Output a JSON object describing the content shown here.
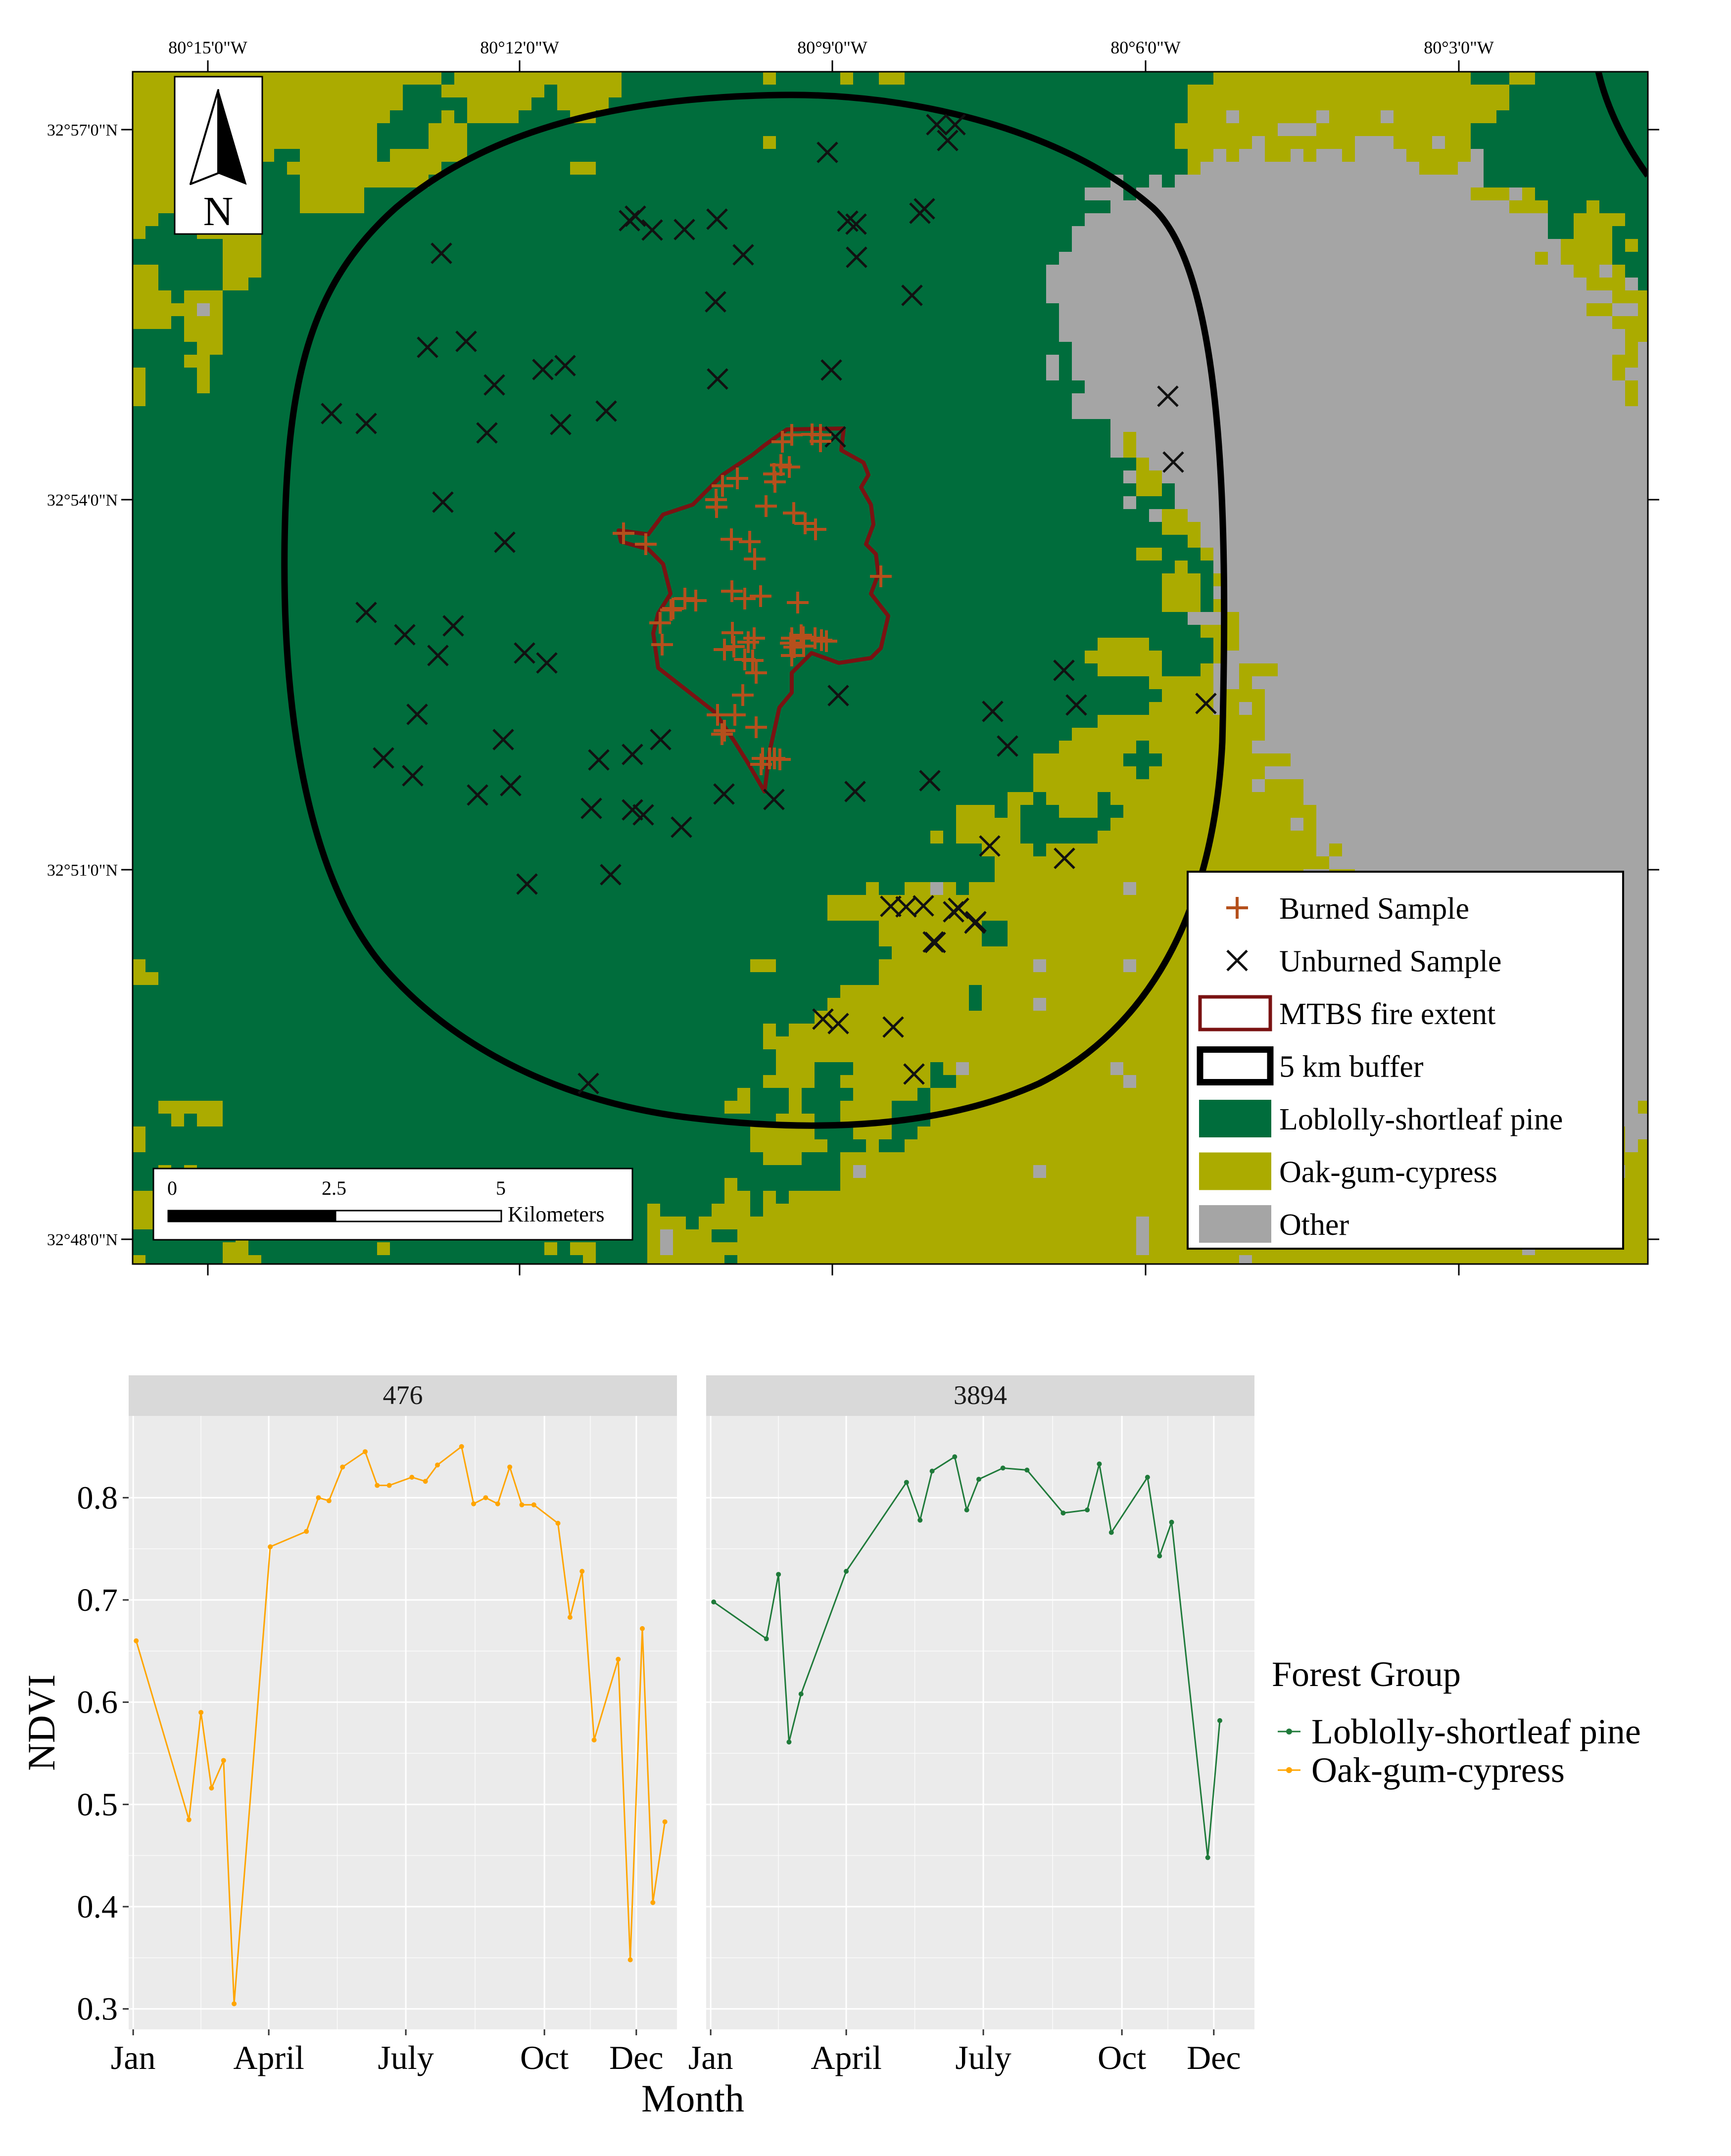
{
  "map": {
    "lon_labels": [
      "80°15'0\"W",
      "80°12'0\"W",
      "80°9'0\"W",
      "80°6'0\"W",
      "80°3'0\"W"
    ],
    "lat_labels": [
      "32°57'0\"N",
      "32°54'0\"N",
      "32°51'0\"N",
      "32°48'0\"N"
    ],
    "north_arrow": {
      "icon": "north-arrow-icon",
      "label": "N"
    },
    "scale_bar": {
      "ticks": [
        "0",
        "2.5",
        "5"
      ],
      "unit": "Kilometers"
    },
    "legend": [
      {
        "label": "Burned Sample",
        "symbol": "plus",
        "color": "#b5501c"
      },
      {
        "label": "Unburned Sample",
        "symbol": "cross",
        "color": "#111111"
      },
      {
        "label": "MTBS fire extent",
        "symbol": "outline",
        "color": "#7a1212"
      },
      {
        "label": "5 km buffer",
        "symbol": "thick-outline",
        "color": "#000000"
      },
      {
        "label": "Loblolly-shortleaf pine",
        "symbol": "fill",
        "color": "#006d3c"
      },
      {
        "label": "Oak-gum-cypress",
        "symbol": "fill",
        "color": "#abab00"
      },
      {
        "label": "Other",
        "symbol": "fill",
        "color": "#a5a5a5"
      }
    ],
    "colors": {
      "pine": "#006d3c",
      "oak": "#abab00",
      "other": "#a5a5a5",
      "burned": "#b5501c",
      "unburned": "#111111",
      "fire": "#7a1212",
      "buffer": "#000000"
    }
  },
  "chart_data": {
    "type": "line",
    "ylabel": "NDVI",
    "xlabel": "Month",
    "ylim": [
      0.28,
      0.88
    ],
    "y_ticks": [
      "0.3",
      "0.4",
      "0.5",
      "0.6",
      "0.7",
      "0.8"
    ],
    "x_ticks": [
      "Jan",
      "April",
      "July",
      "Oct",
      "Dec"
    ],
    "x_tick_days": [
      1,
      91,
      182,
      274,
      335
    ],
    "legend_title": "Forest Group",
    "panels": [
      {
        "title": "476",
        "series_name": "Oak-gum-cypress",
        "color": "#ffa500",
        "points": [
          [
            3,
            0.66
          ],
          [
            38,
            0.485
          ],
          [
            46,
            0.59
          ],
          [
            53,
            0.516
          ],
          [
            61,
            0.543
          ],
          [
            68,
            0.305
          ],
          [
            92,
            0.752
          ],
          [
            116,
            0.767
          ],
          [
            124,
            0.8
          ],
          [
            131,
            0.797
          ],
          [
            140,
            0.83
          ],
          [
            155,
            0.845
          ],
          [
            163,
            0.812
          ],
          [
            171,
            0.812
          ],
          [
            186,
            0.82
          ],
          [
            195,
            0.816
          ],
          [
            203,
            0.832
          ],
          [
            219,
            0.85
          ],
          [
            227,
            0.794
          ],
          [
            235,
            0.8
          ],
          [
            243,
            0.794
          ],
          [
            251,
            0.83
          ],
          [
            259,
            0.793
          ],
          [
            267,
            0.793
          ],
          [
            283,
            0.775
          ],
          [
            291,
            0.683
          ],
          [
            299,
            0.728
          ],
          [
            307,
            0.563
          ],
          [
            323,
            0.642
          ],
          [
            331,
            0.348
          ],
          [
            339,
            0.672
          ],
          [
            346,
            0.404
          ],
          [
            354,
            0.483
          ]
        ]
      },
      {
        "title": "3894",
        "series_name": "Loblolly-shortleaf pine",
        "color": "#1f7a3a",
        "points": [
          [
            3,
            0.698
          ],
          [
            38,
            0.662
          ],
          [
            46,
            0.725
          ],
          [
            53,
            0.561
          ],
          [
            61,
            0.608
          ],
          [
            91,
            0.728
          ],
          [
            131,
            0.815
          ],
          [
            140,
            0.778
          ],
          [
            148,
            0.826
          ],
          [
            163,
            0.84
          ],
          [
            171,
            0.788
          ],
          [
            179,
            0.818
          ],
          [
            195,
            0.829
          ],
          [
            211,
            0.827
          ],
          [
            235,
            0.785
          ],
          [
            251,
            0.788
          ],
          [
            259,
            0.833
          ],
          [
            267,
            0.766
          ],
          [
            291,
            0.82
          ],
          [
            299,
            0.743
          ],
          [
            307,
            0.776
          ],
          [
            331,
            0.448
          ],
          [
            339,
            0.582
          ]
        ]
      }
    ],
    "legend": [
      {
        "label": "Loblolly-shortleaf pine",
        "color": "#1f7a3a"
      },
      {
        "label": "Oak-gum-cypress",
        "color": "#ffa500"
      }
    ]
  }
}
